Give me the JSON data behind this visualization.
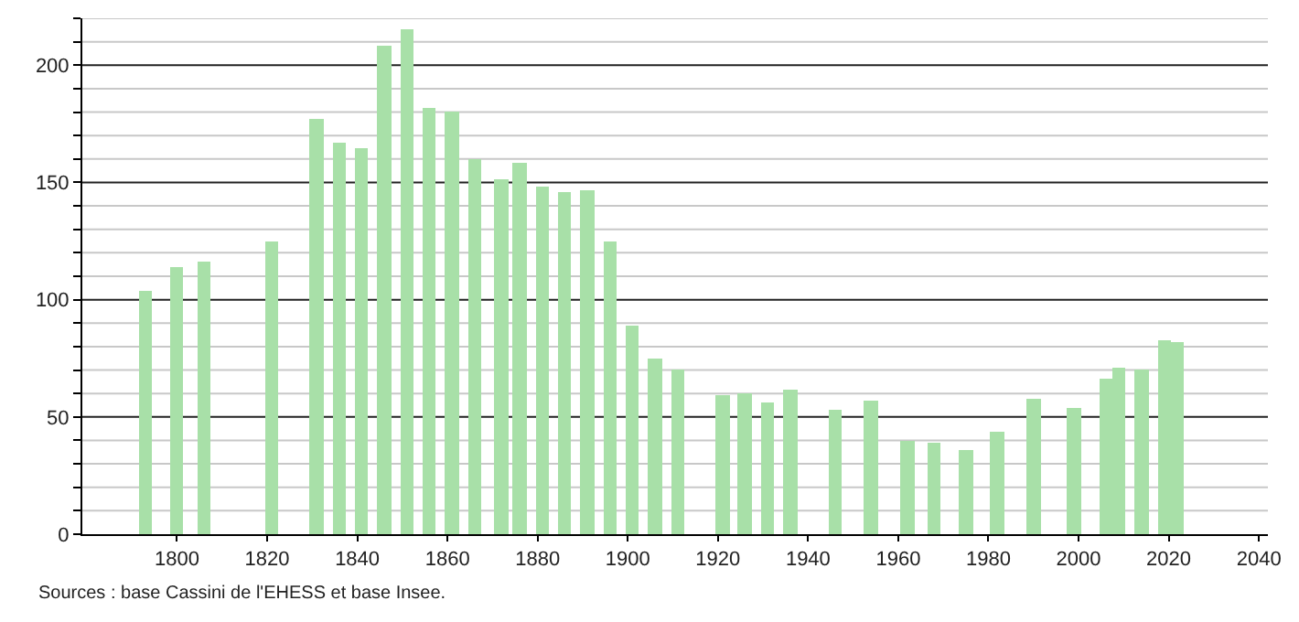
{
  "chart_data": {
    "type": "bar",
    "x": [
      1793,
      1800,
      1806,
      1821,
      1831,
      1836,
      1841,
      1846,
      1851,
      1856,
      1861,
      1866,
      1872,
      1876,
      1881,
      1886,
      1891,
      1896,
      1901,
      1906,
      1911,
      1921,
      1926,
      1931,
      1936,
      1946,
      1954,
      1962,
      1968,
      1975,
      1982,
      1990,
      1999,
      2006,
      2009,
      2014,
      2019,
      2022
    ],
    "values": [
      104,
      114,
      116,
      125,
      177,
      167,
      165,
      208,
      215,
      182,
      180,
      160,
      151,
      158,
      148,
      146,
      147,
      125,
      89,
      75,
      70,
      59,
      60,
      56,
      62,
      53,
      57,
      40,
      39,
      36,
      44,
      58,
      54,
      66,
      71,
      70,
      83,
      82
    ],
    "color": "#a8e0a8",
    "xlim": [
      1779,
      2042
    ],
    "xticks": [
      1800,
      1820,
      1840,
      1860,
      1880,
      1900,
      1920,
      1940,
      1960,
      1980,
      2000,
      2020,
      2040
    ],
    "ylim": [
      0,
      220
    ],
    "yticks": [
      0,
      {
        "value": 10,
        "label": null
      },
      {
        "value": 20,
        "label": null
      },
      {
        "value": 30,
        "label": null
      },
      {
        "value": 40,
        "label": null
      },
      50,
      {
        "value": 60,
        "label": null
      },
      {
        "value": 70,
        "label": null
      },
      {
        "value": 80,
        "label": null
      },
      {
        "value": 90,
        "label": null
      },
      100,
      {
        "value": 110,
        "label": null
      },
      {
        "value": 120,
        "label": null
      },
      {
        "value": 130,
        "label": null
      },
      {
        "value": 140,
        "label": null
      },
      150,
      {
        "value": 160,
        "label": null
      },
      {
        "value": 170,
        "label": null
      },
      {
        "value": 180,
        "label": null
      },
      {
        "value": 190,
        "label": null
      },
      200,
      {
        "value": 210,
        "label": null
      },
      {
        "value": 220,
        "label": null
      }
    ],
    "grid": "y",
    "legend": false,
    "annotations": [
      "Sources : base Cassini de l'EHESS et base Insee."
    ]
  }
}
